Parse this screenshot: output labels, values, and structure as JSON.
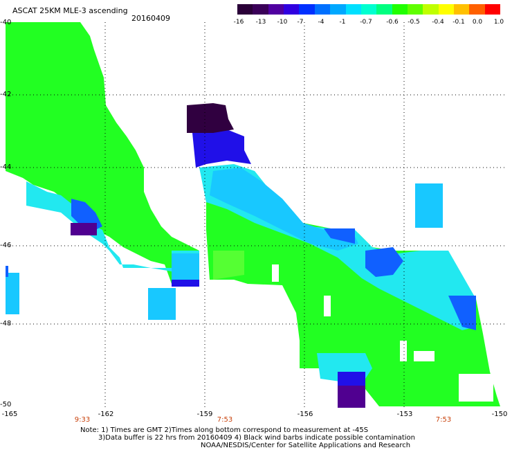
{
  "title": "ASCAT 25KM MLE-3 ascending",
  "date": "20160409",
  "colorbar": {
    "colors": [
      "#2a0038",
      "#3a0058",
      "#5000a0",
      "#3000e0",
      "#0030ff",
      "#0070ff",
      "#00a8ff",
      "#00e0ff",
      "#00ffd0",
      "#00ff80",
      "#20ff00",
      "#60ff00",
      "#c0ff00",
      "#ffff00",
      "#ffc000",
      "#ff6000",
      "#ff0000"
    ],
    "labels": [
      "-16",
      "-13",
      "-10",
      "-7",
      "-4",
      "-1",
      "-0.7",
      "-0.6",
      "-0.5",
      "-0.4",
      "-0.1",
      "0.0",
      "1.0"
    ]
  },
  "axes": {
    "x_labels": [
      "-165",
      "-162",
      "-159",
      "-156",
      "-153",
      "-150"
    ],
    "y_labels": [
      "-40",
      "-42",
      "-44",
      "-46",
      "-48",
      "-50"
    ]
  },
  "times": [
    "9:33",
    "7:53",
    "7:53"
  ],
  "notes": [
    "Note: 1) Times are GMT 2)Times along bottom correspond to measurement at -45S",
    "3)Data buffer is 22 hrs from 20160409 4) Black wind barbs indicate possible contamination",
    "NOAA/NESDIS/Center for Satellite Applications and Research"
  ],
  "legend_colors": {
    "green": "#22ff22",
    "light_green": "#55ff33",
    "cyan": "#22e8f0",
    "light_blue": "#18c8ff",
    "blue": "#1060ff",
    "dark_blue": "#2010e8",
    "purple": "#500090",
    "dark_purple": "#300040"
  }
}
